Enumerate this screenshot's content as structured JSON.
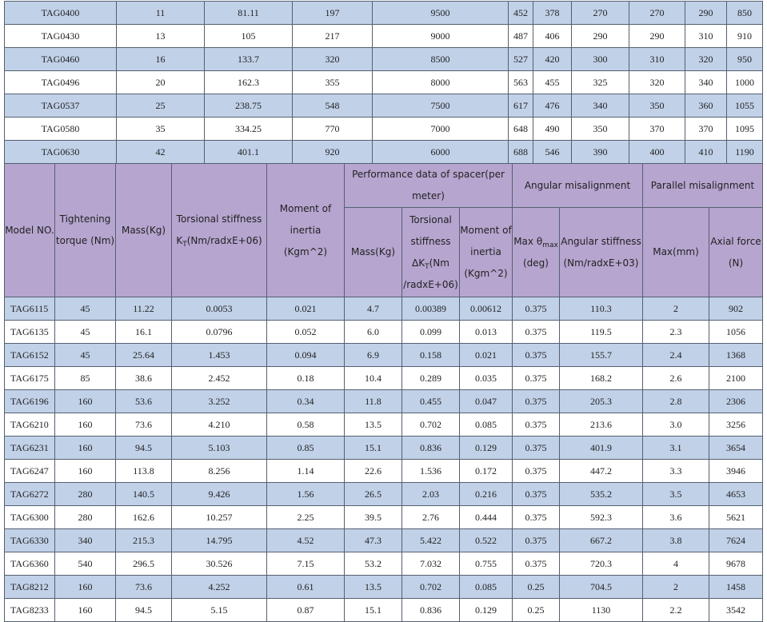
{
  "top_rows": [
    [
      "TAG0400",
      "11",
      "81.11",
      "197",
      "9500",
      "452",
      "378",
      "270",
      "270",
      "290",
      "850"
    ],
    [
      "TAG0430",
      "13",
      "105",
      "217",
      "9000",
      "487",
      "406",
      "290",
      "290",
      "310",
      "910"
    ],
    [
      "TAG0460",
      "16",
      "133.7",
      "320",
      "8500",
      "527",
      "420",
      "300",
      "310",
      "320",
      "950"
    ],
    [
      "TAG0496",
      "20",
      "162.3",
      "355",
      "8000",
      "563",
      "455",
      "325",
      "320",
      "340",
      "1000"
    ],
    [
      "TAG0537",
      "25",
      "238.75",
      "548",
      "7500",
      "617",
      "476",
      "340",
      "350",
      "360",
      "1055"
    ],
    [
      "TAG0580",
      "35",
      "334.25",
      "770",
      "7000",
      "648",
      "490",
      "350",
      "370",
      "370",
      "1095"
    ],
    [
      "TAG0630",
      "42",
      "401.1",
      "920",
      "6000",
      "688",
      "546",
      "390",
      "400",
      "410",
      "1190"
    ]
  ],
  "header": {
    "model": "Model NO.",
    "torque": "Tightening torque (Nm)",
    "mass": "Mass(Kg)",
    "torsional_a": "Torsional stiffness K",
    "torsional_sub": "T",
    "torsional_b": "(Nm/radxE+06)",
    "moment": "Moment of inertia (Kgm^2)",
    "spacer_group": "Performance data of spacer(per meter)",
    "angular_group": "Angular misalignment",
    "parallel_group": "Parallel misalignment",
    "spacer_mass": "Mass(Kg)",
    "spacer_torsional_a": "Torsional stiffness ΔK",
    "spacer_torsional_sub": "T",
    "spacer_torsional_b": "(Nm /radxE+06)",
    "spacer_moment": "Moment of inertia (Kgm^2)",
    "max_a": "Max θ",
    "max_sub": "max",
    "max_b": "(deg)",
    "angular_stiffness": "Angular stiffness (Nm/radxE+03)",
    "parallel_max": "Max(mm)",
    "axial_force": "Axial force (N)"
  },
  "rows": [
    [
      "TAG6115",
      "45",
      "11.22",
      "0.0053",
      "0.021",
      "4.7",
      "0.00389",
      "0.00612",
      "0.375",
      "110.3",
      "2",
      "902"
    ],
    [
      "TAG6135",
      "45",
      "16.1",
      "0.0796",
      "0.052",
      "6.0",
      "0.099",
      "0.013",
      "0.375",
      "119.5",
      "2.3",
      "1056"
    ],
    [
      "TAG6152",
      "45",
      "25.64",
      "1.453",
      "0.094",
      "6.9",
      "0.158",
      "0.021",
      "0.375",
      "155.7",
      "2.4",
      "1368"
    ],
    [
      "TAG6175",
      "85",
      "38.6",
      "2.452",
      "0.18",
      "10.4",
      "0.289",
      "0.035",
      "0.375",
      "168.2",
      "2.6",
      "2100"
    ],
    [
      "TAG6196",
      "160",
      "53.6",
      "3.252",
      "0.34",
      "11.8",
      "0.455",
      "0.047",
      "0.375",
      "205.3",
      "2.8",
      "2306"
    ],
    [
      "TAG6210",
      "160",
      "73.6",
      "4.210",
      "0.58",
      "13.5",
      "0.702",
      "0.085",
      "0.375",
      "213.6",
      "3.0",
      "3256"
    ],
    [
      "TAG6231",
      "160",
      "94.5",
      "5.103",
      "0.85",
      "15.1",
      "0.836",
      "0.129",
      "0.375",
      "401.9",
      "3.1",
      "3654"
    ],
    [
      "TAG6247",
      "160",
      "113.8",
      "8.256",
      "1.14",
      "22.6",
      "1.536",
      "0.172",
      "0.375",
      "447.2",
      "3.3",
      "3946"
    ],
    [
      "TAG6272",
      "280",
      "140.5",
      "9.426",
      "1.56",
      "26.5",
      "2.03",
      "0.216",
      "0.375",
      "535.2",
      "3.5",
      "4653"
    ],
    [
      "TAG6300",
      "280",
      "162.6",
      "10.257",
      "2.25",
      "39.5",
      "2.76",
      "0.444",
      "0.375",
      "592.3",
      "3.6",
      "5621"
    ],
    [
      "TAG6330",
      "340",
      "215.3",
      "14.795",
      "4.52",
      "47.3",
      "5.422",
      "0.522",
      "0.375",
      "667.2",
      "3.8",
      "7624"
    ],
    [
      "TAG6360",
      "540",
      "296.5",
      "30.526",
      "7.15",
      "53.2",
      "7.032",
      "0.755",
      "0.375",
      "720.3",
      "4",
      "9678"
    ],
    [
      "TAG8212",
      "160",
      "73.6",
      "4.252",
      "0.61",
      "13.5",
      "0.702",
      "0.085",
      "0.25",
      "704.5",
      "2",
      "1458"
    ],
    [
      "TAG8233",
      "160",
      "94.5",
      "5.15",
      "0.87",
      "15.1",
      "0.836",
      "0.129",
      "0.25",
      "1130",
      "2.2",
      "3542"
    ]
  ]
}
